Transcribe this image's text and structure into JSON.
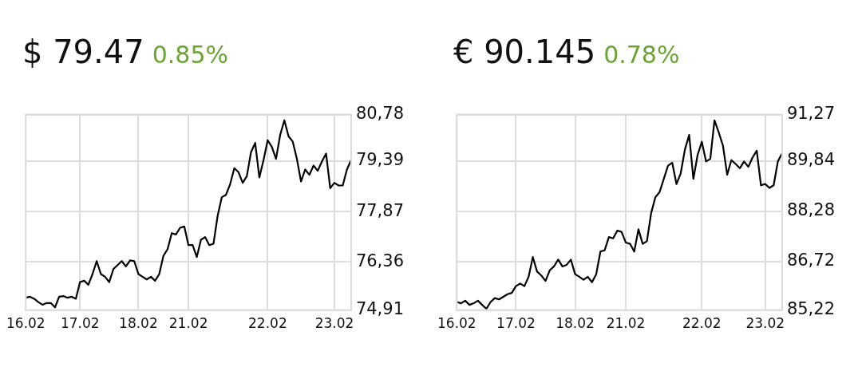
{
  "chart_data": [
    {
      "type": "line",
      "title": "$ 79.47",
      "subtitle": "0.85%",
      "grid": true,
      "categories": [
        "16.02",
        null,
        null,
        null,
        null,
        null,
        null,
        null,
        null,
        null,
        null,
        null,
        null,
        "17.02",
        null,
        null,
        null,
        null,
        null,
        null,
        null,
        null,
        null,
        null,
        null,
        null,
        null,
        "18.02",
        null,
        null,
        null,
        null,
        null,
        null,
        null,
        null,
        null,
        null,
        null,
        "21.02",
        null,
        null,
        null,
        null,
        null,
        null,
        null,
        null,
        null,
        null,
        null,
        null,
        null,
        null,
        null,
        null,
        null,
        null,
        "22.02",
        null,
        null,
        null,
        null,
        null,
        null,
        null,
        null,
        null,
        null,
        null,
        null,
        null,
        null,
        null,
        "23.02",
        null,
        null,
        null,
        null
      ],
      "ylim": [
        74.91,
        80.78
      ],
      "yticks": [
        {
          "value": 74.91,
          "label": "74,91"
        },
        {
          "value": 76.36,
          "label": "76,36"
        },
        {
          "value": 77.87,
          "label": "77,87"
        },
        {
          "value": 79.39,
          "label": "79,39"
        },
        {
          "value": 80.78,
          "label": "80,78"
        }
      ],
      "series": [
        {
          "color": "#000000",
          "values": [
            75.28,
            75.31,
            75.25,
            75.15,
            75.07,
            75.12,
            75.12,
            74.99,
            75.31,
            75.33,
            75.28,
            75.31,
            75.25,
            75.75,
            75.79,
            75.67,
            75.99,
            76.38,
            75.99,
            75.91,
            75.75,
            76.14,
            76.26,
            76.38,
            76.22,
            76.4,
            76.38,
            75.99,
            75.91,
            75.83,
            75.91,
            75.79,
            75.99,
            76.54,
            76.74,
            77.22,
            77.18,
            77.38,
            77.42,
            76.86,
            76.86,
            76.5,
            77.02,
            77.1,
            76.86,
            76.9,
            77.74,
            78.3,
            78.37,
            78.69,
            79.17,
            79.05,
            78.73,
            78.93,
            79.65,
            79.93,
            78.89,
            79.41,
            80.01,
            79.81,
            79.45,
            80.17,
            80.61,
            80.13,
            79.97,
            79.45,
            78.77,
            79.13,
            78.97,
            79.25,
            79.09,
            79.37,
            79.61,
            78.57,
            78.73,
            78.65,
            78.65,
            79.13,
            79.41
          ]
        }
      ]
    },
    {
      "type": "line",
      "title": "€ 90.145",
      "subtitle": "0.78%",
      "grid": true,
      "categories": [
        "16.02",
        null,
        null,
        null,
        null,
        null,
        null,
        null,
        null,
        null,
        null,
        null,
        null,
        null,
        "17.02",
        null,
        null,
        null,
        null,
        null,
        null,
        null,
        null,
        null,
        null,
        null,
        null,
        null,
        "18.02",
        null,
        null,
        null,
        null,
        null,
        null,
        null,
        null,
        null,
        null,
        null,
        "21.02",
        null,
        null,
        null,
        null,
        null,
        null,
        null,
        null,
        null,
        null,
        null,
        null,
        null,
        null,
        null,
        null,
        null,
        "22.02",
        null,
        null,
        null,
        null,
        null,
        null,
        null,
        null,
        null,
        null,
        null,
        null,
        null,
        null,
        "23.02",
        null,
        null,
        null,
        null
      ],
      "ylim": [
        85.22,
        91.27
      ],
      "yticks": [
        {
          "value": 85.22,
          "label": "85,22"
        },
        {
          "value": 86.72,
          "label": "86,72"
        },
        {
          "value": 88.28,
          "label": "88,28"
        },
        {
          "value": 89.84,
          "label": "89,84"
        },
        {
          "value": 91.27,
          "label": "91,27"
        }
      ],
      "series": [
        {
          "color": "#000000",
          "values": [
            85.47,
            85.43,
            85.51,
            85.38,
            85.43,
            85.51,
            85.38,
            85.26,
            85.47,
            85.59,
            85.55,
            85.63,
            85.71,
            85.75,
            85.96,
            86.04,
            85.96,
            86.25,
            86.86,
            86.41,
            86.29,
            86.12,
            86.45,
            86.57,
            86.78,
            86.57,
            86.62,
            86.78,
            86.33,
            86.25,
            86.16,
            86.25,
            86.08,
            86.33,
            87.03,
            87.07,
            87.48,
            87.44,
            87.68,
            87.64,
            87.31,
            87.27,
            87.03,
            87.72,
            87.27,
            87.35,
            88.22,
            88.71,
            88.87,
            89.28,
            89.69,
            89.78,
            89.12,
            89.45,
            90.19,
            90.64,
            89.28,
            90.02,
            90.43,
            89.82,
            89.9,
            91.09,
            90.72,
            90.31,
            89.41,
            89.86,
            89.74,
            89.61,
            89.82,
            89.65,
            89.94,
            90.15,
            89.08,
            89.12,
            89.0,
            89.08,
            89.82,
            90.07
          ]
        }
      ]
    }
  ]
}
